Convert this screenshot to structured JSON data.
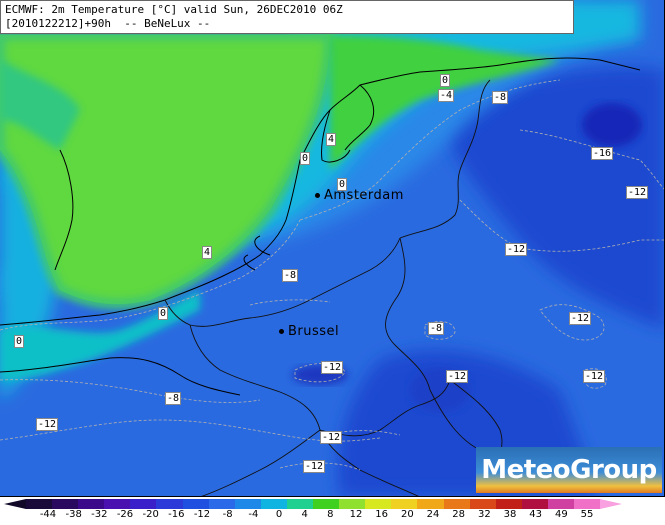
{
  "title": {
    "line1": "ECMWF: 2m Temperature [°C] valid Sun, 26DEC2010 06Z",
    "line2": "[2010122212]+90h  -- BeNeLux --"
  },
  "cities": [
    {
      "name": "Amsterdam"
    },
    {
      "name": "Brussel"
    }
  ],
  "contour_labels": [
    "0",
    "-4",
    "-8",
    "-16",
    "-12",
    "4",
    "0",
    "0",
    "-8",
    "-12",
    "4",
    "0",
    "0",
    "-12",
    "-8",
    "-12",
    "-12",
    "-8",
    "-12",
    "-12",
    "-12"
  ],
  "logo": {
    "text": "MeteoGroup"
  },
  "legend": {
    "ticks": [
      "-44",
      "-38",
      "-32",
      "-26",
      "-20",
      "-16",
      "-12",
      "-8",
      "-4",
      "0",
      "4",
      "8",
      "12",
      "16",
      "20",
      "24",
      "28",
      "32",
      "38",
      "43",
      "49",
      "55"
    ],
    "colors": [
      "#1a0a3a",
      "#2a0a5e",
      "#3b0a8a",
      "#4b10b0",
      "#3a20c8",
      "#2c3ad8",
      "#2050e0",
      "#2a6ae8",
      "#1e88e8",
      "#10b4e0",
      "#20d090",
      "#40d020",
      "#90e030",
      "#d8e820",
      "#f0d020",
      "#f0a818",
      "#e87818",
      "#d84818",
      "#c02018",
      "#b01040",
      "#d040a0",
      "#f070c8"
    ]
  },
  "colors": {
    "land_green": "#68d840",
    "sea_green": "#80e050",
    "coast_cyan": "#20c0d8",
    "mid_blue": "#2a78e0",
    "deep_blue": "#2050d8",
    "dark_blue": "#1838c8"
  }
}
